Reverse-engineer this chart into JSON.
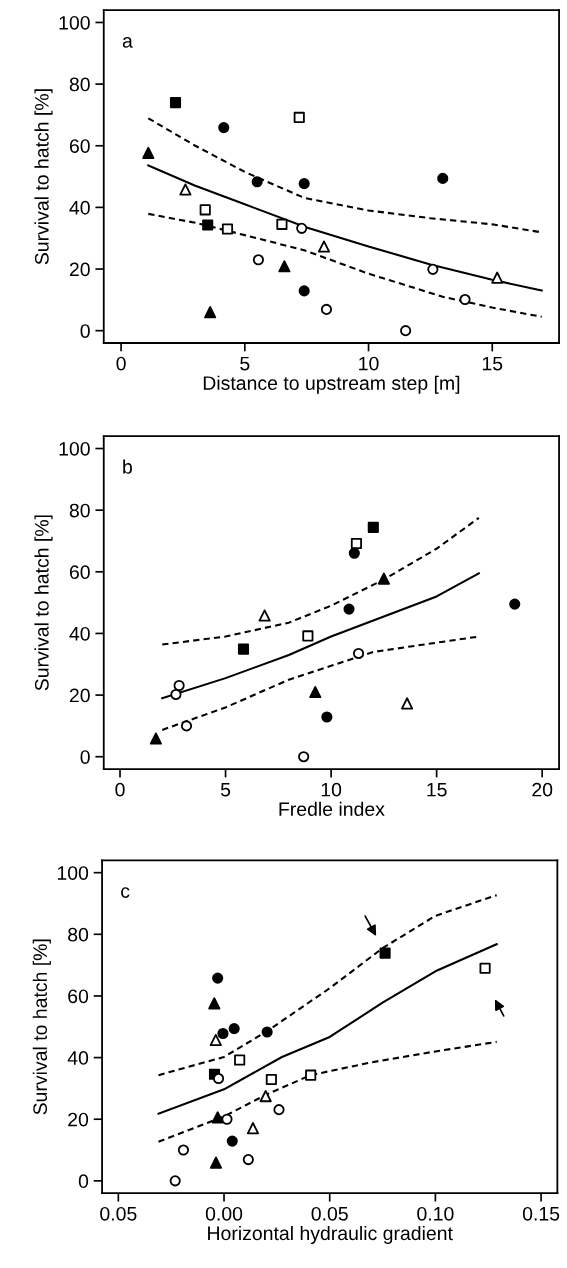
{
  "chart_data": [
    {
      "type": "scatter",
      "xlabel": "Distance to upstream step [m]",
      "ylabel": "Survival to hatch [%]",
      "annotations": [
        "a"
      ],
      "xlim": [
        -0.7,
        17.7
      ],
      "ylim": [
        -4,
        104
      ],
      "xticks": [
        0,
        5,
        10,
        15
      ],
      "yticks": [
        0,
        20,
        40,
        60,
        80,
        100
      ],
      "series": [
        {
          "marker": "square",
          "color": "#000000",
          "x": [
            2.2,
            3.5
          ],
          "values": [
            74,
            34.3
          ]
        },
        {
          "marker": "square",
          "color": "#ffffff",
          "x": [
            7.2,
            3.4,
            4.3,
            6.5
          ],
          "values": [
            69.2,
            39.2,
            33,
            34.5
          ]
        },
        {
          "marker": "circle",
          "color": "#000000",
          "x": [
            4.15,
            5.5,
            7.4,
            13.0,
            7.4
          ],
          "values": [
            65.9,
            48.3,
            47.7,
            49.4,
            12.9
          ]
        },
        {
          "marker": "circle",
          "color": "#ffffff",
          "x": [
            7.3,
            5.55,
            8.3,
            11.5,
            12.6,
            13.9
          ],
          "values": [
            33.2,
            23,
            6.9,
            0,
            19.9,
            10.1
          ]
        },
        {
          "marker": "triangle",
          "color": "#000000",
          "x": [
            1.1,
            3.6,
            6.6
          ],
          "values": [
            57.7,
            6,
            20.9
          ]
        },
        {
          "marker": "triangle",
          "color": "#ffffff",
          "x": [
            2.6,
            8.2,
            15.2
          ],
          "values": [
            45.8,
            27.3,
            17.2
          ]
        },
        {
          "type": "line",
          "line_style": "solid",
          "color": "#000000",
          "x": [
            1.1,
            3,
            5,
            7.5,
            10,
            12.5,
            15,
            17
          ],
          "values": [
            53.6,
            47,
            41,
            33.5,
            27.3,
            21.5,
            16.5,
            13
          ]
        },
        {
          "type": "line",
          "line_style": "dashed",
          "color": "#000000",
          "x": [
            1.1,
            3,
            5,
            7.4,
            10,
            12.5,
            15,
            17
          ],
          "values": [
            68.9,
            60,
            51.5,
            43.1,
            39,
            36.5,
            34.5,
            31.9
          ]
        },
        {
          "type": "line",
          "line_style": "dashed",
          "color": "#000000",
          "x": [
            1.1,
            3,
            5,
            7.4,
            10,
            13,
            15,
            17
          ],
          "values": [
            37.9,
            35,
            31,
            26.1,
            18.5,
            11,
            7.5,
            4.5
          ]
        }
      ]
    },
    {
      "type": "scatter",
      "xlabel": "Fredle index",
      "ylabel": "Survival to hatch [%]",
      "annotations": [
        "b"
      ],
      "xlim": [
        -0.77,
        20.8
      ],
      "ylim": [
        -4,
        104
      ],
      "xticks": [
        0,
        5,
        10,
        15,
        20
      ],
      "yticks": [
        0,
        20,
        40,
        60,
        80,
        100
      ],
      "series": [
        {
          "marker": "square",
          "color": "#000000",
          "x": [
            12.0,
            5.85
          ],
          "values": [
            74.4,
            34.9
          ]
        },
        {
          "marker": "square",
          "color": "#ffffff",
          "x": [
            11.2,
            8.9
          ],
          "values": [
            69.2,
            39.2
          ]
        },
        {
          "marker": "circle",
          "color": "#000000",
          "x": [
            11.1,
            10.85,
            18.7,
            9.8
          ],
          "values": [
            66,
            47.9,
            49.5,
            12.9
          ]
        },
        {
          "marker": "circle",
          "color": "#ffffff",
          "x": [
            2.8,
            2.65,
            3.15,
            8.7,
            11.3
          ],
          "values": [
            23.1,
            20.2,
            10,
            0,
            33.5
          ]
        },
        {
          "marker": "triangle",
          "color": "#000000",
          "x": [
            1.7,
            9.25,
            12.5
          ],
          "values": [
            5.9,
            21,
            57.8
          ]
        },
        {
          "marker": "triangle",
          "color": "#ffffff",
          "x": [
            6.85,
            13.6
          ],
          "values": [
            45.8,
            17.3
          ]
        },
        {
          "type": "line",
          "line_style": "solid",
          "color": "#000000",
          "x": [
            2,
            5,
            8,
            10,
            12.5,
            15,
            17
          ],
          "values": [
            19,
            25.5,
            33,
            39,
            45.5,
            52,
            59.5
          ]
        },
        {
          "type": "line",
          "line_style": "dashed",
          "color": "#000000",
          "x": [
            2,
            5,
            8,
            10,
            12.5,
            15,
            17
          ],
          "values": [
            36.4,
            39,
            43.5,
            49,
            57.5,
            67.5,
            77.5
          ]
        },
        {
          "type": "line",
          "line_style": "dashed",
          "color": "#000000",
          "x": [
            2,
            5,
            8,
            10,
            12,
            15,
            17
          ],
          "values": [
            8.7,
            16,
            25,
            29.5,
            34,
            37,
            39
          ]
        }
      ]
    },
    {
      "type": "scatter",
      "xlabel": "Horizontal hydraulic gradient",
      "ylabel": "Survival to hatch [%]",
      "annotations": [
        "c"
      ],
      "xlim": [
        -0.0577,
        0.1577
      ],
      "ylim": [
        -4,
        104
      ],
      "xticks": [
        {
          "value": -0.05,
          "label": "0.05"
        },
        {
          "value": 0,
          "label": "0.00"
        },
        {
          "value": 0.05,
          "label": "0.05"
        },
        {
          "value": 0.1,
          "label": "0.10"
        },
        {
          "value": 0.15,
          "label": "0.15"
        }
      ],
      "yticks": [
        0,
        20,
        40,
        60,
        80,
        100
      ],
      "series": [
        {
          "marker": "square",
          "color": "#000000",
          "x": [
            0.0762,
            -0.0045
          ],
          "values": [
            73.9,
            34.6
          ]
        },
        {
          "marker": "square",
          "color": "#ffffff",
          "x": [
            0.1235,
            0.0074,
            0.0224,
            0.041
          ],
          "values": [
            69,
            39.2,
            32.9,
            34.3
          ]
        },
        {
          "marker": "circle",
          "color": "#000000",
          "x": [
            -0.003,
            -0.0005,
            0.0048,
            0.0204,
            0.0039
          ],
          "values": [
            65.8,
            47.8,
            49.4,
            48.3,
            12.9
          ]
        },
        {
          "marker": "circle",
          "color": "#ffffff",
          "x": [
            -0.0026,
            0.0014,
            0.026,
            -0.0192,
            0.0115,
            -0.0231
          ],
          "values": [
            33.2,
            20,
            23.1,
            10,
            6.9,
            0
          ]
        },
        {
          "marker": "triangle",
          "color": "#000000",
          "x": [
            -0.0046,
            -0.003,
            -0.0038
          ],
          "values": [
            57.6,
            20.6,
            5.9
          ]
        },
        {
          "marker": "triangle",
          "color": "#ffffff",
          "x": [
            -0.0039,
            0.0197,
            0.0137
          ],
          "values": [
            45.7,
            27.5,
            17.1
          ]
        },
        {
          "type": "line",
          "line_style": "solid",
          "color": "#000000",
          "x": [
            -0.031,
            0,
            0.0274,
            0.05,
            0.075,
            0.1,
            0.129
          ],
          "values": [
            21.8,
            29.7,
            40.2,
            46.7,
            57.8,
            68,
            76.8
          ]
        },
        {
          "type": "line",
          "line_style": "dashed",
          "color": "#000000",
          "x": [
            -0.031,
            0,
            0.02,
            0.05,
            0.075,
            0.1,
            0.129
          ],
          "values": [
            34.3,
            40.2,
            48.4,
            62.5,
            75.5,
            86,
            92.7
          ]
        },
        {
          "type": "line",
          "line_style": "dashed",
          "color": "#000000",
          "x": [
            -0.031,
            0,
            0.02,
            0.041,
            0.07,
            0.1,
            0.129
          ],
          "values": [
            12.7,
            20.9,
            28,
            34.3,
            38.5,
            42,
            45.1
          ]
        }
      ]
    }
  ]
}
